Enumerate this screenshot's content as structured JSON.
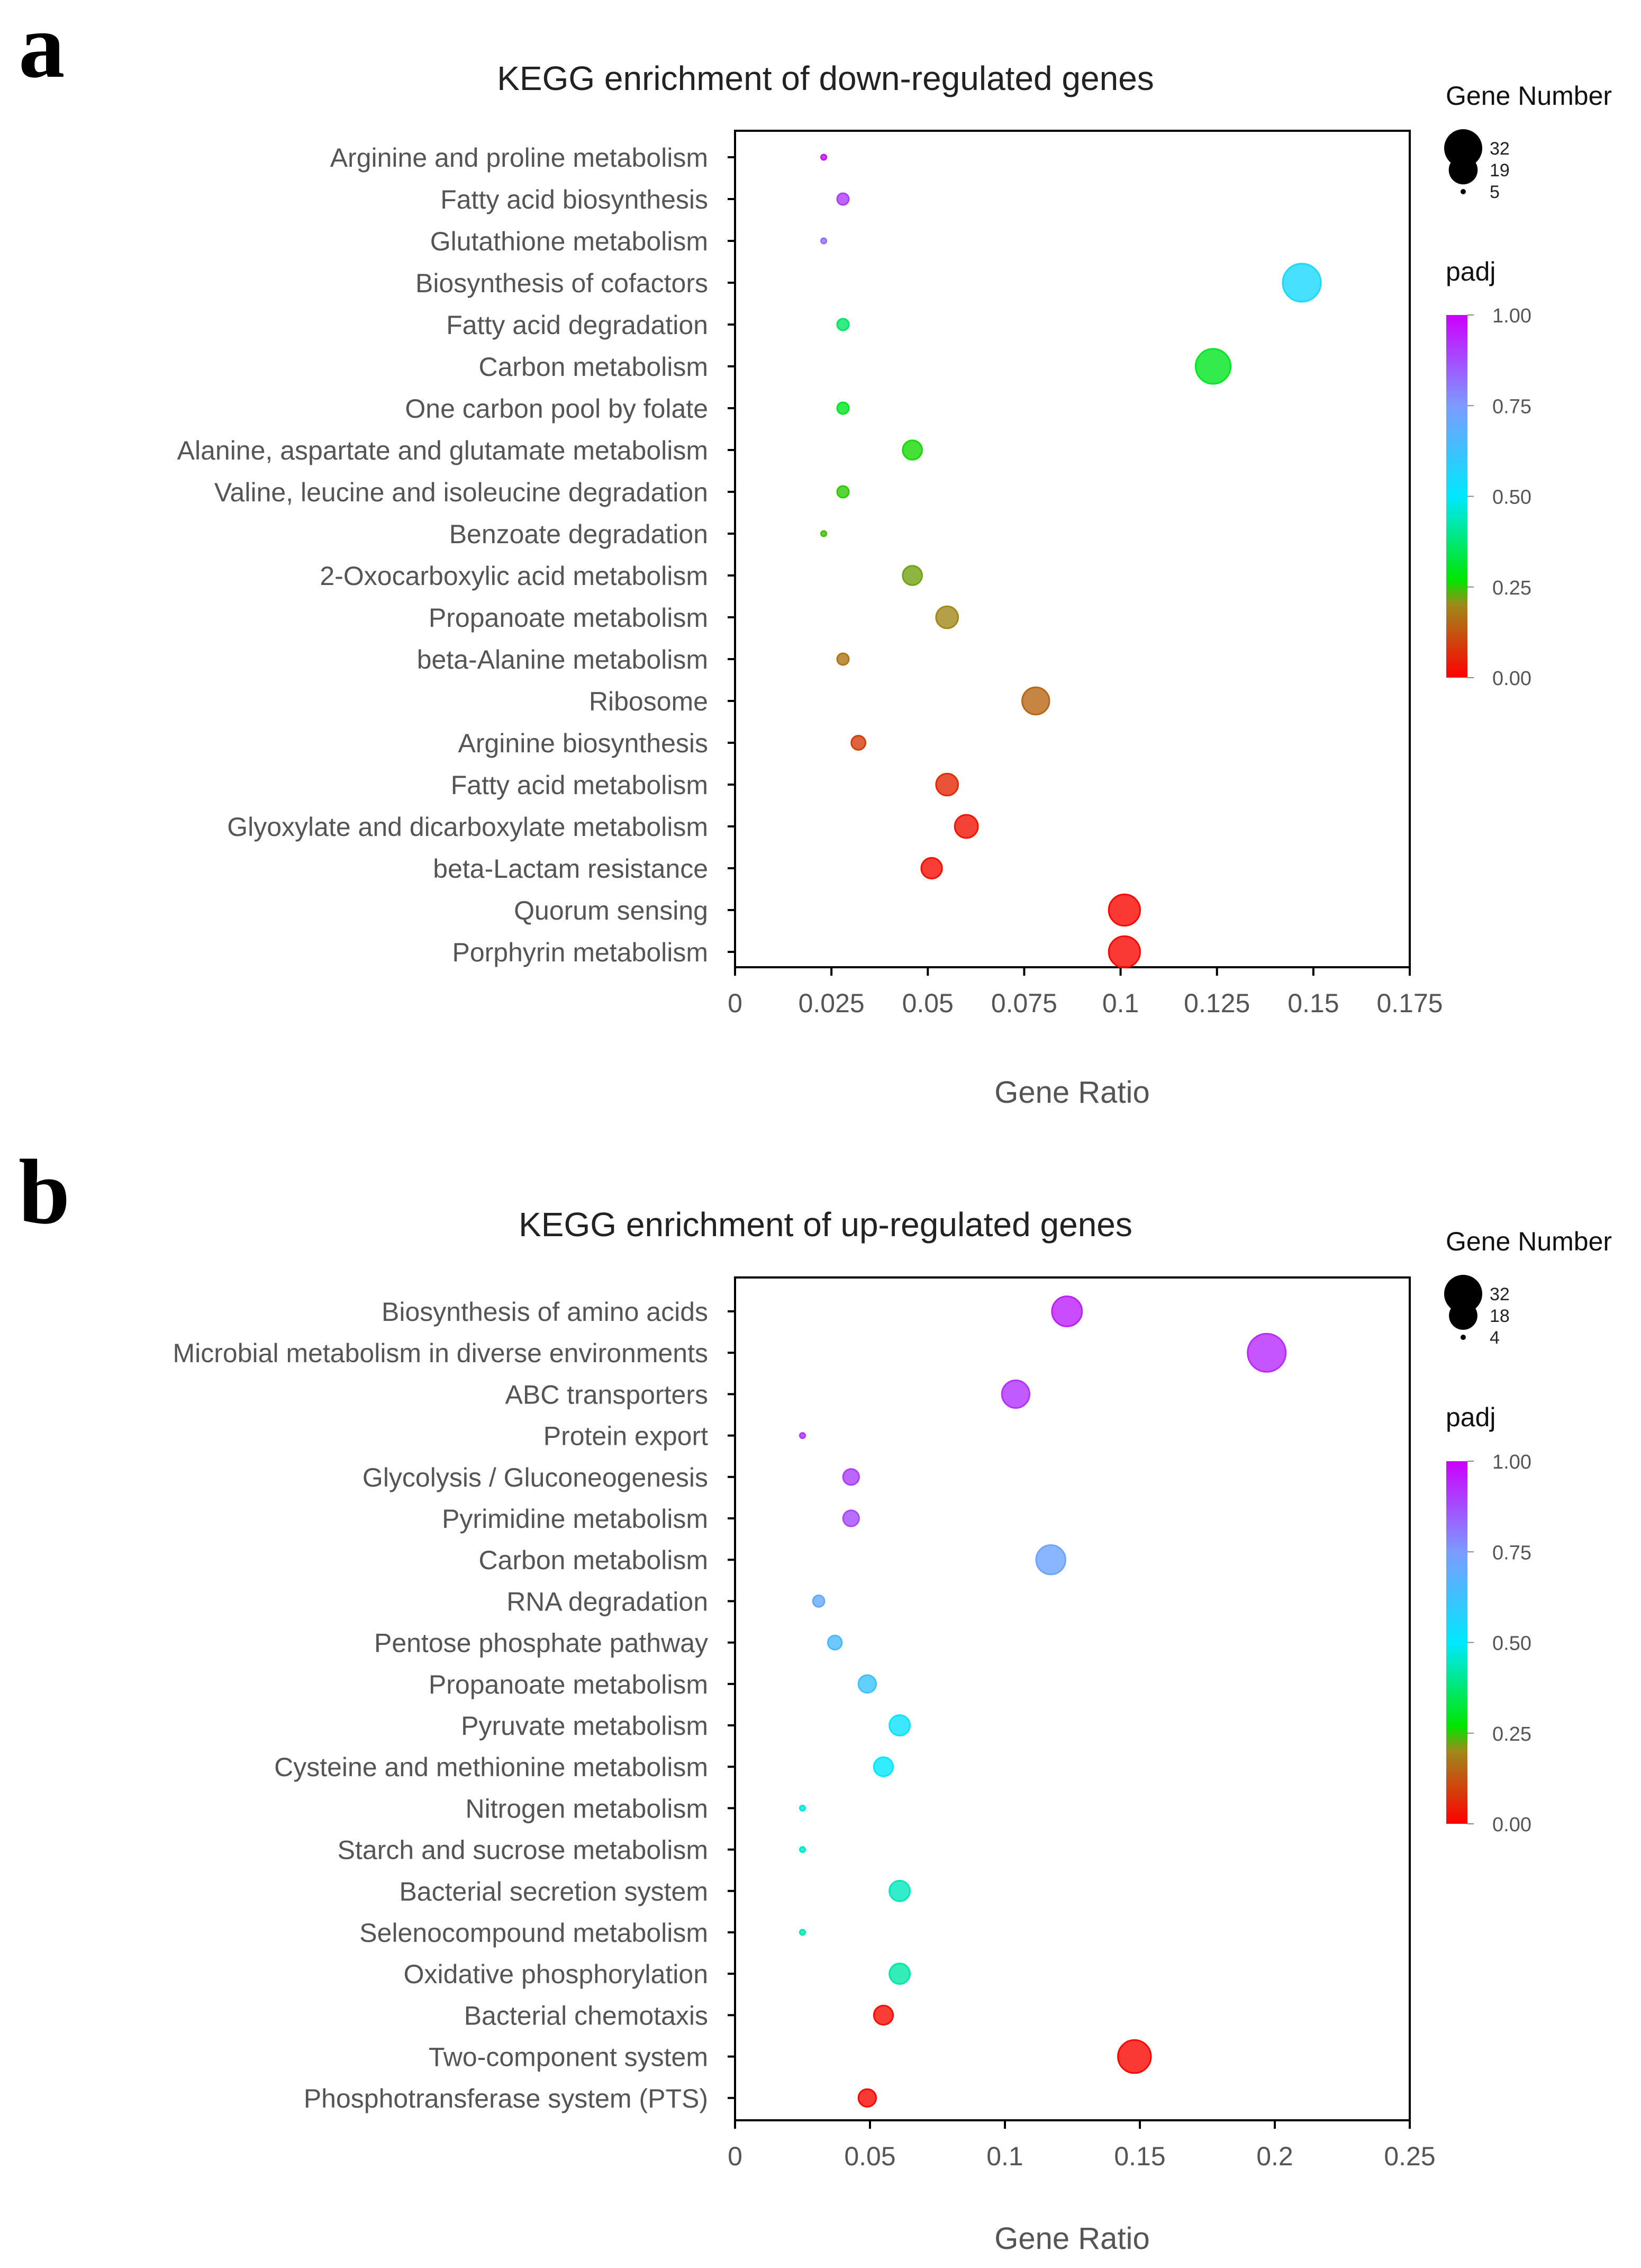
{
  "chart_data": [
    {
      "panel": "a",
      "type": "scatter",
      "title": "KEGG enrichment of down-regulated genes",
      "xlabel": "Gene Ratio",
      "ylabel": "",
      "xlim": [
        0,
        0.175
      ],
      "xticks": [
        0,
        0.025,
        0.05,
        0.075,
        0.1,
        0.125,
        0.15,
        0.175
      ],
      "xtick_labels": [
        "0",
        "0.025",
        "0.05",
        "0.075",
        "0.1",
        "0.125",
        "0.15",
        "0.175"
      ],
      "size_legend": {
        "title": "Gene Number",
        "values": [
          32,
          19,
          5
        ]
      },
      "color_legend": {
        "title": "padj",
        "ticks": [
          1.0,
          0.75,
          0.5,
          0.25,
          0.0
        ],
        "tick_labels": [
          "1.00",
          "0.75",
          "0.50",
          "0.25",
          "0.00"
        ]
      },
      "categories": [
        "Arginine and proline metabolism",
        "Fatty acid biosynthesis",
        "Glutathione metabolism",
        "Biosynthesis of cofactors",
        "Fatty acid degradation",
        "Carbon metabolism",
        "One carbon pool by folate",
        "Alanine, aspartate and glutamate metabolism",
        "Valine, leucine and isoleucine degradation",
        "Benzoate degradation",
        "2-Oxocarboxylic acid metabolism",
        "Propanoate metabolism",
        "beta-Alanine metabolism",
        "Ribosome",
        "Arginine biosynthesis",
        "Fatty acid metabolism",
        "Glyoxylate and dicarboxylate metabolism",
        "beta-Lactam resistance",
        "Quorum sensing",
        "Porphyrin metabolism"
      ],
      "gene_ratio": [
        0.023,
        0.028,
        0.023,
        0.147,
        0.028,
        0.124,
        0.028,
        0.046,
        0.028,
        0.023,
        0.046,
        0.055,
        0.028,
        0.078,
        0.032,
        0.055,
        0.06,
        0.051,
        0.101,
        0.101
      ],
      "gene_number": [
        5,
        6,
        5,
        32,
        6,
        27,
        6,
        10,
        6,
        5,
        10,
        12,
        6,
        17,
        7,
        12,
        13,
        11,
        22,
        22
      ],
      "padj": [
        0.97,
        0.9,
        0.82,
        0.55,
        0.36,
        0.3,
        0.3,
        0.26,
        0.25,
        0.24,
        0.22,
        0.2,
        0.17,
        0.15,
        0.09,
        0.06,
        0.03,
        0.02,
        0.01,
        0.01
      ]
    },
    {
      "panel": "b",
      "type": "scatter",
      "title": "KEGG enrichment of up-regulated genes",
      "xlabel": "Gene Ratio",
      "ylabel": "",
      "xlim": [
        0,
        0.25
      ],
      "xticks": [
        0,
        0.05,
        0.1,
        0.15,
        0.2,
        0.25
      ],
      "xtick_labels": [
        "0",
        "0.05",
        "0.1",
        "0.15",
        "0.2",
        "0.25"
      ],
      "size_legend": {
        "title": "Gene Number",
        "values": [
          32,
          18,
          4
        ]
      },
      "color_legend": {
        "title": "padj",
        "ticks": [
          1.0,
          0.75,
          0.5,
          0.25,
          0.0
        ],
        "tick_labels": [
          "1.00",
          "0.75",
          "0.50",
          "0.25",
          "0.00"
        ]
      },
      "categories": [
        "Biosynthesis of amino acids",
        "Microbial metabolism in diverse environments",
        "ABC transporters",
        "Protein export",
        "Glycolysis / Gluconeogenesis",
        "Pyrimidine metabolism",
        "Carbon metabolism",
        "RNA degradation",
        "Pentose phosphate pathway",
        "Propanoate metabolism",
        "Pyruvate metabolism",
        "Cysteine and methionine metabolism",
        "Nitrogen metabolism",
        "Starch and sucrose metabolism",
        "Bacterial secretion system",
        "Selenocompound metabolism",
        "Oxidative phosphorylation",
        "Bacterial chemotaxis",
        "Two-component system",
        "Phosphotransferase system (PTS)"
      ],
      "gene_ratio": [
        0.123,
        0.197,
        0.104,
        0.025,
        0.043,
        0.043,
        0.117,
        0.031,
        0.037,
        0.049,
        0.061,
        0.055,
        0.025,
        0.025,
        0.061,
        0.025,
        0.061,
        0.055,
        0.148,
        0.049
      ],
      "gene_number": [
        20,
        32,
        17,
        4,
        7,
        7,
        19,
        5,
        6,
        8,
        10,
        9,
        4,
        4,
        10,
        4,
        10,
        9,
        24,
        8
      ],
      "padj": [
        0.95,
        0.93,
        0.92,
        0.92,
        0.9,
        0.88,
        0.72,
        0.7,
        0.65,
        0.62,
        0.52,
        0.5,
        0.47,
        0.45,
        0.44,
        0.43,
        0.42,
        0.02,
        0.01,
        0.01
      ]
    }
  ]
}
